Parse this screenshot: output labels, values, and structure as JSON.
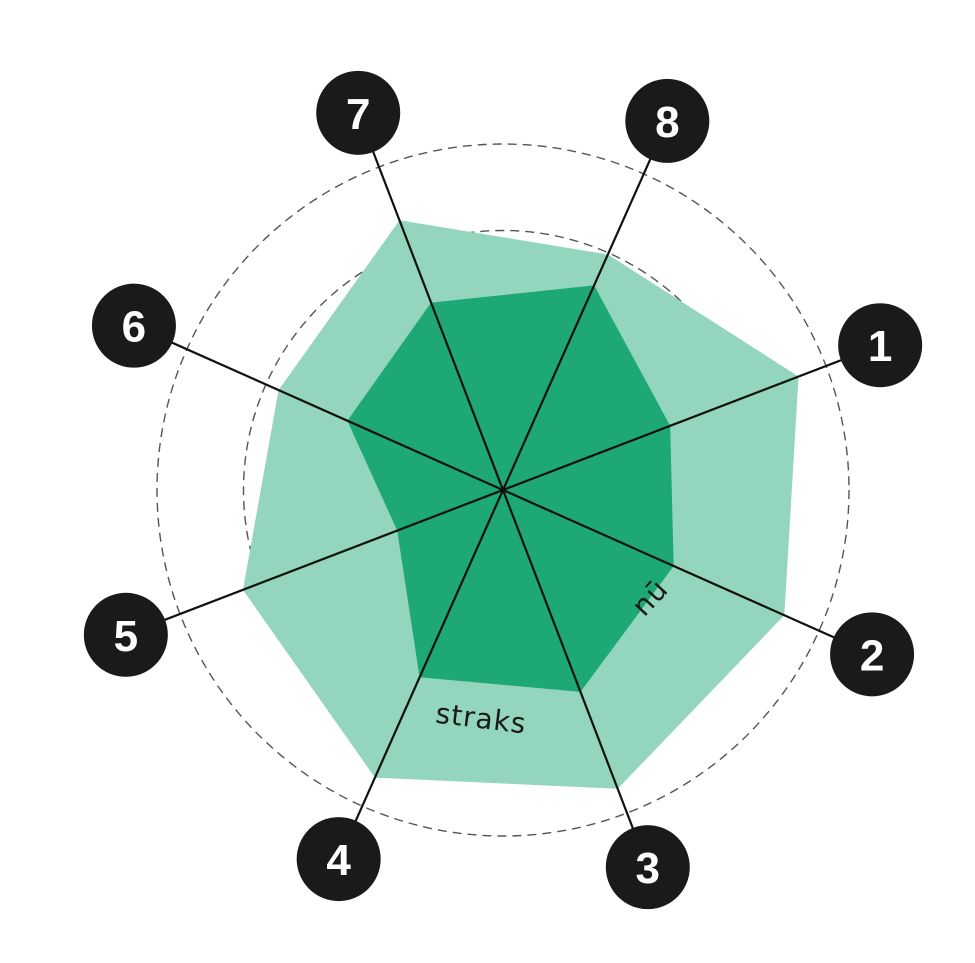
{
  "chart_data": {
    "type": "radar",
    "axes": [
      "1",
      "2",
      "3",
      "4",
      "5",
      "6",
      "7",
      "8"
    ],
    "rings": 4,
    "ring_max": 4,
    "grid": "dashed-circles",
    "series": [
      {
        "name": "straks",
        "values": [
          3.66,
          3.56,
          3.7,
          3.64,
          3.22,
          2.84,
          3.34,
          2.98
        ],
        "color": "#93d5bd"
      },
      {
        "name": "nū",
        "values": [
          2.07,
          2.16,
          2.5,
          2.37,
          1.31,
          1.97,
          2.32,
          2.59
        ],
        "color": "#1ea876"
      }
    ],
    "axis_badge_color": "#1a1a1a",
    "axis_line_color": "#111111",
    "grid_color": "#555555"
  }
}
